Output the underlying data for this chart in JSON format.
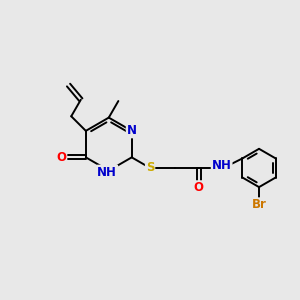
{
  "background_color": "#e8e8e8",
  "bond_color": "#000000",
  "atom_colors": {
    "N": "#0000cc",
    "O": "#ff0000",
    "S": "#ccaa00",
    "Br": "#cc7700",
    "C": "#000000"
  },
  "figsize": [
    3.0,
    3.0
  ],
  "dpi": 100,
  "xlim": [
    0,
    10
  ],
  "ylim": [
    0,
    10
  ]
}
